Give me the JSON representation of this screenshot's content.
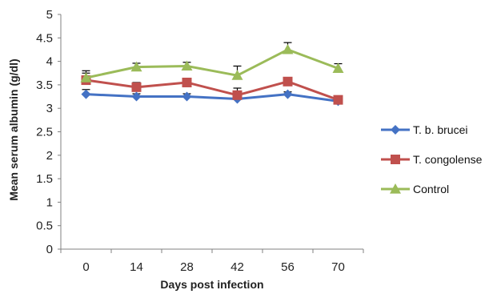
{
  "chart_data": {
    "type": "line",
    "title": "",
    "xlabel": "Days  post infection",
    "ylabel": "Mean serum albumin  (g/dl)",
    "categories": [
      "0",
      "14",
      "28",
      "42",
      "56",
      "70"
    ],
    "ylim": [
      0,
      5
    ],
    "yticks": [
      "0",
      "0.5",
      "1",
      "1.5",
      "2",
      "2.5",
      "3",
      "3.5",
      "4",
      "4.5",
      "5"
    ],
    "grid": false,
    "legend_position": "right",
    "series": [
      {
        "name": "T. b. brucei",
        "color": "#4472C4",
        "marker": "diamond",
        "values": [
          3.3,
          3.25,
          3.25,
          3.2,
          3.3,
          3.15
        ],
        "errors": [
          0.1,
          0.06,
          0.06,
          0.08,
          0.05,
          0.05
        ]
      },
      {
        "name": "T. congolense",
        "color": "#C0504D",
        "marker": "square",
        "values": [
          3.6,
          3.45,
          3.55,
          3.28,
          3.57,
          3.18
        ],
        "errors": [
          0.2,
          0.1,
          0.08,
          0.15,
          0.06,
          0.07
        ]
      },
      {
        "name": "Control",
        "color": "#9BBB59",
        "marker": "triangle",
        "values": [
          3.65,
          3.88,
          3.9,
          3.7,
          4.25,
          3.85
        ],
        "errors": [
          0.1,
          0.08,
          0.08,
          0.2,
          0.15,
          0.1
        ]
      }
    ]
  }
}
